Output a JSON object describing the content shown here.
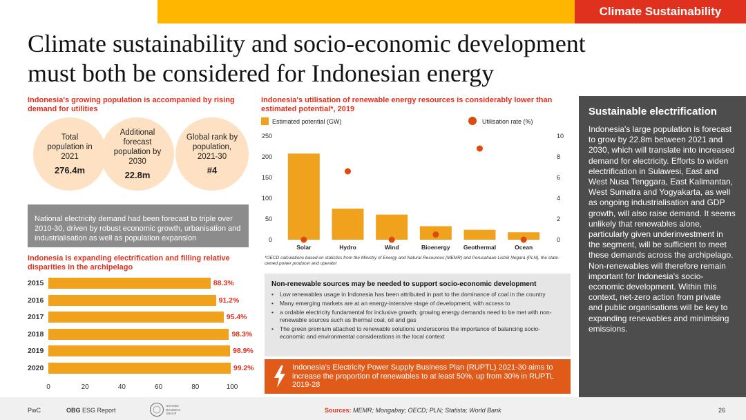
{
  "header": {
    "tag": "Climate Sustainability",
    "title_line1": "Climate sustainability and socio-economic development",
    "title_line2": "must both be considered for Indonesian energy",
    "accent": "#ffb600",
    "tag_color": "#e0301e"
  },
  "population": {
    "heading": "Indonesia's growing population is accompanied by rising demand for utilities",
    "circles": [
      {
        "label": "Total population in 2021",
        "value": "276.4m"
      },
      {
        "label": "Additional forecast population by 2030",
        "value": "22.8m"
      },
      {
        "label": "Global rank by population, 2021-30",
        "value": "#4"
      }
    ],
    "note": "National electricity demand had been forecast to triple over 2010-30, driven by robust economic growth, urbanisation and industrialisation as well as population expansion"
  },
  "electrification": {
    "heading": "Indonesia is expanding electrification and filling relative disparities in the archipelago"
  },
  "renewables": {
    "heading": "Indonesia's utilisation of renewable energy resources is considerably lower than estimated potential*, 2019",
    "footnote": "*OECD calculations based on statistics from the Ministry of Energy and Natural Resources (MEMR) and Perusahaan Listrik Negara (PLN), the state-owned power producer and operator"
  },
  "chart_data": [
    {
      "type": "bar",
      "orientation": "horizontal",
      "categories": [
        "2015",
        "2016",
        "2017",
        "2018",
        "2019",
        "2020"
      ],
      "values": [
        88.3,
        91.2,
        95.4,
        98.3,
        98.9,
        99.2
      ],
      "value_labels": [
        "88.3%",
        "91.2%",
        "95.4%",
        "98.3%",
        "98.9%",
        "99.2%"
      ],
      "xlim": [
        0,
        100
      ],
      "x_ticks": [
        "0",
        "20",
        "40",
        "60",
        "80",
        "100"
      ],
      "bar_color": "#f0a21d",
      "label_color": "#e0301e"
    },
    {
      "type": "bar",
      "categories": [
        "Solar",
        "Hydro",
        "Wind",
        "Bioenergy",
        "Geothermal",
        "Ocean"
      ],
      "series": [
        {
          "name": "Estimated potential (GW)",
          "values": [
            207.8,
            75.0,
            60.6,
            32.6,
            23.9,
            17.9
          ],
          "axis": "left",
          "color": "#f0a21d"
        },
        {
          "name": "Utilisation rate (%)",
          "values": [
            0.0,
            6.6,
            0.0,
            0.5,
            8.8,
            0.0
          ],
          "axis": "right",
          "color": "#dc4a0c",
          "marker": "circle"
        }
      ],
      "ylim": [
        0,
        250
      ],
      "y_ticks": [
        "0",
        "50",
        "100",
        "150",
        "200",
        "250"
      ],
      "y2lim": [
        0,
        10
      ],
      "y2_ticks": [
        "0",
        "2",
        "4",
        "6",
        "8",
        "10"
      ],
      "legend": "top"
    }
  ],
  "nonrenewable": {
    "heading": "Non-renewable sources may be needed to support socio-economic development",
    "items": [
      {
        "bullet": "•",
        "text": "Low renewables usage in Indonesia has been attributed in part to the dominance of coal in the country"
      },
      {
        "bullet": "•",
        "text": "Many emerging markets are at an energy-intensive stage of development, with access to"
      },
      {
        "bullet": "•",
        "text": "a ordable electricity fundamental for inclusive growth; growing energy demands need to be met with non-renewable sources such as thermal coal, oil and gas"
      },
      {
        "bullet": "•",
        "text": "The green premium attached to renewable solutions underscores the importance of balancing socio-economic and environmental considerations in the local context"
      }
    ]
  },
  "ruptl": {
    "icon": "lightning-bolt-icon",
    "text": "Indonesia's Electricity Power Supply Business Plan (RUPTL) 2021-30 aims to increase the proportion of renewables to at least 50%, up from 30% in RUPTL 2019-28"
  },
  "sidebar": {
    "heading": "Sustainable electrification",
    "body": "Indonesia's large population is forecast to grow by 22.8m between 2021 and 2030, which will translate into increased demand for electricity. Efforts to widen electrification in Sulawesi, East and West Nusa Tenggara, East Kalimantan, West Sumatra and Yogyakarta, as well as ongoing industrialisation and GDP growth, will also raise demand. It seems unlikely that renewables alone, particularly given underinvestment in the segment, will be sufficient to meet these demands across the archipelago. Non-renewables will therefore remain important for Indonesia's socio-economic development. Within this context, net-zero action from private and public organisations will be key to expanding renewables and minimising emissions."
  },
  "footer": {
    "left": "PwC",
    "report_bold": "OBG",
    "report": " ESG Report",
    "logo_text": "OXFORD BUSINESS GROUP",
    "sources_label": "Sources:",
    "sources": "MEMR; Mongabay; OECD; PLN; Statista; World Bank",
    "page": "26"
  }
}
